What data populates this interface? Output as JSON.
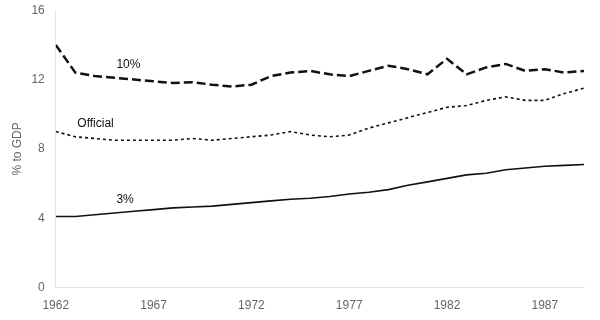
{
  "chart_data": {
    "type": "line",
    "ylabel": "% to GDP",
    "x": [
      1962,
      1963,
      1964,
      1965,
      1966,
      1967,
      1968,
      1969,
      1970,
      1971,
      1972,
      1973,
      1974,
      1975,
      1976,
      1977,
      1978,
      1979,
      1980,
      1981,
      1982,
      1983,
      1984,
      1985,
      1986,
      1987,
      1988,
      1989
    ],
    "series": [
      {
        "name": "10%",
        "color": "#111111",
        "line_style": "dashed",
        "values": [
          14.0,
          12.4,
          12.2,
          12.1,
          12.0,
          11.9,
          11.8,
          11.85,
          11.7,
          11.6,
          11.7,
          12.2,
          12.4,
          12.5,
          12.3,
          12.2,
          12.5,
          12.8,
          12.6,
          12.3,
          13.2,
          12.3,
          12.7,
          12.9,
          12.5,
          12.6,
          12.4,
          12.5
        ]
      },
      {
        "name": "Official",
        "color": "#111111",
        "line_style": "dotted",
        "values": [
          9.0,
          8.7,
          8.6,
          8.5,
          8.5,
          8.5,
          8.5,
          8.6,
          8.5,
          8.6,
          8.7,
          8.8,
          9.0,
          8.8,
          8.7,
          8.8,
          9.2,
          9.5,
          9.8,
          10.1,
          10.4,
          10.5,
          10.8,
          11.0,
          10.8,
          10.8,
          11.2,
          11.5
        ]
      },
      {
        "name": "3%",
        "color": "#111111",
        "line_style": "solid",
        "values": [
          4.1,
          4.1,
          4.2,
          4.3,
          4.4,
          4.5,
          4.6,
          4.65,
          4.7,
          4.8,
          4.9,
          5.0,
          5.1,
          5.15,
          5.25,
          5.4,
          5.5,
          5.65,
          5.9,
          6.1,
          6.3,
          6.5,
          6.6,
          6.8,
          6.9,
          7.0,
          7.05,
          7.1
        ]
      }
    ],
    "xlim": [
      1962,
      1989
    ],
    "ylim": [
      0,
      16
    ],
    "xticks": [
      1962,
      1967,
      1972,
      1977,
      1982,
      1987
    ],
    "yticks": [
      0,
      4,
      8,
      12,
      16
    ],
    "grid": false
  }
}
